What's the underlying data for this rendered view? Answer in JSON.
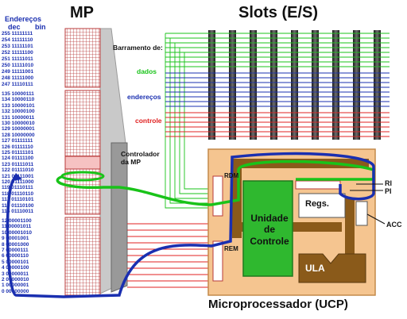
{
  "titles": {
    "mp": "MP",
    "slots": "Slots (E/S)",
    "ucp": "Microprocessador (UCP)"
  },
  "memory": {
    "header_line1": "Endereços",
    "header_dec": "dec",
    "header_bin": "bin",
    "addresses_top": [
      "255 11111111",
      "254 11111110",
      "253 11111101",
      "252 11111100",
      "251 11111011",
      "250 11111010",
      "249 11111001",
      "248 11111000",
      "247 11110111"
    ],
    "addresses_mid": [
      "135 10000111",
      "134 10000110",
      "133 10000101",
      "132 10000100",
      "131 10000011",
      "130 10000010",
      "129 10000001",
      "128 10000000",
      "127 01111111",
      "126 01111110",
      "125 01111101",
      "124 01111100",
      "123 01111011",
      "122 01111010",
      "121 01111001",
      "120 01111000",
      "119 01110111",
      "118 01110110",
      "117 01110101",
      "116 01110100",
      "115 01110011"
    ],
    "addresses_bottom": [
      "12 00001100",
      "11 00001011",
      "10 00001010",
      "9 00001001",
      "8 00001000",
      "7 00000111",
      "6 00000110",
      "5 00000101",
      "4 00000100",
      "3 00000011",
      "2 00000010",
      "1 00000001",
      "0 00000000"
    ],
    "controller_label": "Controlador da MP"
  },
  "bus": {
    "title": "Barramento de:",
    "data_label": "dados",
    "address_label": "endereços",
    "control_label": "controle"
  },
  "cpu": {
    "control_unit": "Unidade de Controle",
    "registers": "Regs.",
    "alu": "ULA",
    "ri": "RI",
    "pi": "PI",
    "acc": "ACC",
    "rdm": "RDM",
    "rem": "REM"
  },
  "colors": {
    "data_bus": "#19c319",
    "address_bus": "#1a2fb0",
    "control_bus": "#e02020",
    "memory_cells": "#b83a3a",
    "cpu_board": "#f5c590",
    "control_unit": "#2fb82f",
    "internal_path": "#8a5a1a"
  }
}
